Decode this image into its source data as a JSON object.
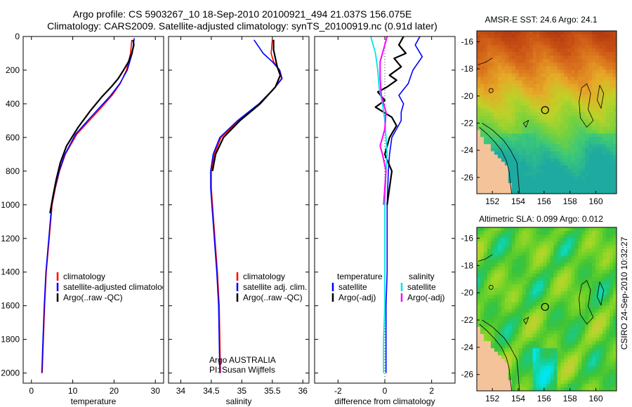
{
  "header": {
    "line1": "Argo profile: CS 5903267_10 18-Sep-2010 20100921_494 21.037S 156.075E",
    "line2": "Climatology: CARS2009. Satellite-adjusted climatology: synTS_20100919.nc (0.91d later)"
  },
  "side_label": "CSIRO 24-Sep-2010 10:32:27",
  "colors": {
    "red": "#ff0000",
    "blue": "#0000ff",
    "black": "#000000",
    "cyan": "#00e5e5",
    "magenta": "#ff00ff",
    "land": "#f5c39a"
  },
  "chart_data": [
    {
      "type": "line",
      "xlabel": "temperature",
      "xlim": [
        -2,
        32
      ],
      "ylim": [
        2060,
        0
      ],
      "xticks": [
        0,
        10,
        20,
        30
      ],
      "yticks": [
        0,
        200,
        400,
        600,
        800,
        1000,
        1200,
        1400,
        1600,
        1800,
        2000
      ],
      "legend": {
        "placement": "lower-middle",
        "entries": [
          "climatology",
          "satellite-adjusted climatology",
          "Argo(..raw -QC)"
        ]
      },
      "series": [
        {
          "name": "climatology",
          "color": "red",
          "width": 1.6,
          "x": [
            24.3,
            24.0,
            23.0,
            21.5,
            19.5,
            17.0,
            14.0,
            11.0,
            8.2,
            6.8,
            5.8,
            5.0,
            4.3,
            3.6,
            3.2,
            2.9,
            2.6
          ],
          "y": [
            20,
            100,
            200,
            280,
            350,
            420,
            500,
            580,
            700,
            800,
            900,
            1000,
            1200,
            1400,
            1600,
            1800,
            2000
          ]
        },
        {
          "name": "satellite-adjusted climatology",
          "color": "blue",
          "width": 1.6,
          "x": [
            24.9,
            24.4,
            23.2,
            21.4,
            19.2,
            16.6,
            13.6,
            10.7,
            8.1,
            6.7,
            5.7,
            4.9,
            4.2,
            3.5,
            3.1,
            2.8,
            2.5
          ],
          "y": [
            10,
            100,
            200,
            280,
            350,
            420,
            500,
            580,
            700,
            800,
            900,
            1000,
            1200,
            1400,
            1600,
            1800,
            2000
          ]
        },
        {
          "name": "Argo(..raw -QC)",
          "color": "black",
          "width": 2.2,
          "x": [
            24.6,
            24.8,
            24.3,
            23.5,
            22.3,
            21.0,
            19.3,
            17.0,
            14.3,
            11.3,
            8.5,
            7.0,
            6.0,
            5.2,
            4.5
          ],
          "y": [
            20,
            50,
            100,
            150,
            200,
            250,
            300,
            360,
            440,
            540,
            650,
            750,
            850,
            950,
            1050
          ]
        }
      ]
    },
    {
      "type": "line",
      "xlabel": "salinity",
      "xlim": [
        33.8,
        36.1
      ],
      "ylim": [
        2060,
        0
      ],
      "xticks": [
        34,
        34.5,
        35,
        35.5,
        36
      ],
      "legend": {
        "placement": "lower-middle",
        "entries": [
          "climatology",
          "satellite adj. clim.",
          "Argo(..raw -QC)"
        ]
      },
      "annotation": [
        "Argo AUSTRALIA",
        "PI: Susan Wijffels"
      ],
      "series": [
        {
          "name": "climatology",
          "color": "red",
          "width": 1.6,
          "x": [
            35.5,
            35.48,
            35.52,
            35.62,
            35.65,
            35.55,
            35.3,
            34.95,
            34.66,
            34.55,
            34.5,
            34.5,
            34.52,
            34.56,
            34.6,
            34.63,
            34.65
          ],
          "y": [
            20,
            100,
            150,
            200,
            250,
            300,
            400,
            500,
            600,
            700,
            800,
            900,
            1000,
            1200,
            1400,
            1600,
            2000
          ]
        },
        {
          "name": "satellite adj. clim.",
          "color": "blue",
          "width": 1.6,
          "x": [
            35.2,
            35.35,
            35.5,
            35.62,
            35.66,
            35.55,
            35.28,
            34.93,
            34.64,
            34.53,
            34.49,
            34.49,
            34.51,
            34.55,
            34.59,
            34.62,
            34.64
          ],
          "y": [
            20,
            100,
            150,
            200,
            250,
            300,
            400,
            500,
            600,
            700,
            800,
            900,
            1000,
            1200,
            1400,
            1600,
            2000
          ]
        },
        {
          "name": "Argo(..raw -QC)",
          "color": "black",
          "width": 2.2,
          "x": [
            35.52,
            35.52,
            35.55,
            35.58,
            35.63,
            35.55,
            35.3,
            34.97,
            34.7,
            34.57,
            34.52
          ],
          "y": [
            20,
            80,
            130,
            180,
            230,
            300,
            400,
            500,
            600,
            700,
            800
          ]
        }
      ]
    },
    {
      "type": "line",
      "xlabel": "difference from climatology",
      "xlim": [
        -3,
        3
      ],
      "ylim": [
        2060,
        0
      ],
      "xticks": [
        -2,
        0,
        2
      ],
      "legend": {
        "placement": "lower-middle",
        "headers": [
          "temperature",
          "salinity"
        ],
        "entries": [
          "satellite",
          "Argo(-adj)",
          "satellite",
          "Argo(-adj)"
        ]
      },
      "series": [
        {
          "name": "temperature satellite",
          "color": "blue",
          "width": 1.6,
          "x": [
            1.5,
            1.3,
            1.6,
            1.2,
            1.0,
            0.6,
            0.8,
            0.7,
            0.7,
            0.5,
            0.3,
            0.2,
            0.15,
            0.1,
            0.1,
            0.1,
            0.05,
            0.05,
            0.05
          ],
          "y": [
            0,
            50,
            120,
            200,
            280,
            350,
            400,
            450,
            500,
            550,
            600,
            700,
            800,
            1000,
            1200,
            1400,
            1600,
            1800,
            2000
          ]
        },
        {
          "name": "temperature Argo(-adj)",
          "color": "black",
          "width": 2.2,
          "x": [
            0.8,
            0.6,
            0.9,
            0.4,
            0.7,
            0.2,
            0.5,
            0.1,
            -0.3,
            0.0,
            -0.4,
            0.3,
            0.5,
            0.2,
            0.0,
            0.3,
            0.1
          ],
          "y": [
            0,
            50,
            100,
            130,
            180,
            230,
            260,
            300,
            330,
            380,
            420,
            480,
            530,
            600,
            700,
            800,
            1000
          ]
        },
        {
          "name": "salinity satellite",
          "color": "cyan",
          "width": 1.8,
          "x": [
            -0.6,
            -0.4,
            -0.3,
            -0.25,
            -0.1,
            0.0,
            0.05,
            0.1,
            0.05,
            0.0,
            0.0,
            0.0,
            0.0,
            -0.05,
            -0.05
          ],
          "y": [
            0,
            100,
            200,
            300,
            400,
            500,
            600,
            700,
            800,
            1000,
            1200,
            1400,
            1600,
            1800,
            2000
          ]
        },
        {
          "name": "salinity Argo(-adj)",
          "color": "magenta",
          "width": 2.0,
          "x": [
            0.1,
            0.0,
            -0.2,
            -0.2,
            -0.15,
            0.05,
            0.0,
            -0.1,
            -0.2,
            -0.1,
            0.05,
            0.0,
            -0.05
          ],
          "y": [
            0,
            50,
            150,
            250,
            350,
            450,
            550,
            600,
            650,
            700,
            800,
            900,
            1000
          ]
        }
      ]
    },
    {
      "type": "heatmap",
      "title": "AMSR-E SST: 24.6  Argo: 24.1",
      "xlim": [
        150.8,
        161.6
      ],
      "ylim": [
        -27.2,
        -15.2
      ],
      "xticks": [
        152,
        154,
        156,
        158,
        160
      ],
      "yticks": [
        -16,
        -18,
        -20,
        -22,
        -24,
        -26
      ],
      "profile_marker": {
        "lon": 156.075,
        "lat": -21.037
      }
    },
    {
      "type": "heatmap",
      "title": "Altimetric SLA: 0.099  Argo: 0.012",
      "xlim": [
        150.8,
        161.6
      ],
      "ylim": [
        -27.2,
        -15.2
      ],
      "xticks": [
        152,
        154,
        156,
        158,
        160
      ],
      "yticks": [
        -16,
        -18,
        -20,
        -22,
        -24,
        -26
      ],
      "profile_marker": {
        "lon": 156.075,
        "lat": -21.037
      }
    }
  ]
}
